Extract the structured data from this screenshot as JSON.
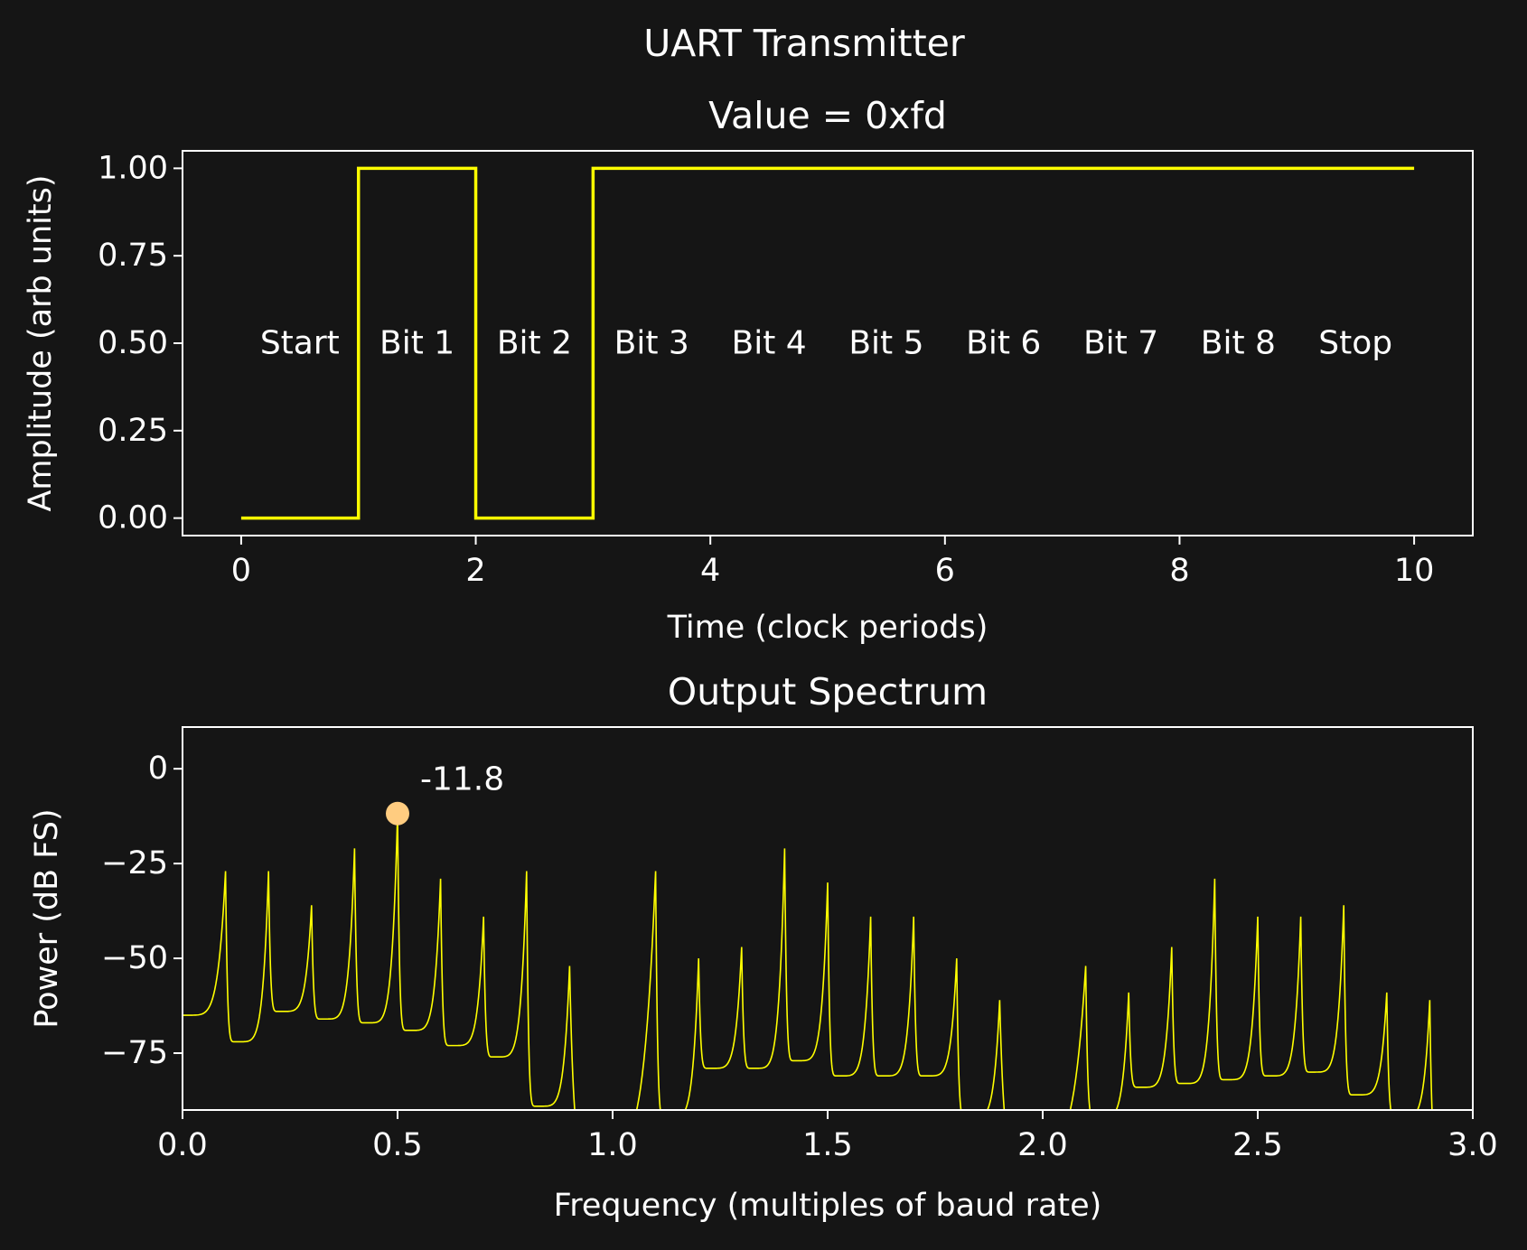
{
  "figure": {
    "title": "UART Transmitter",
    "background": "#151515",
    "foreground": "#ffffff"
  },
  "chart_data": [
    {
      "type": "line",
      "title": "Value = 0xfd",
      "xlabel": "Time (clock periods)",
      "ylabel": "Amplitude (arb units)",
      "xlim": [
        -0.5,
        10.5
      ],
      "ylim": [
        -0.05,
        1.05
      ],
      "xticks": [
        "0",
        "2",
        "4",
        "6",
        "8",
        "10"
      ],
      "yticks": [
        "0.00",
        "0.25",
        "0.50",
        "0.75",
        "1.00"
      ],
      "grid": false,
      "series": [
        {
          "color": "#ffff00",
          "step": "post",
          "x": [
            0,
            1,
            2,
            3,
            4,
            5,
            6,
            7,
            8,
            9,
            10
          ],
          "y": [
            0,
            1,
            0,
            1,
            1,
            1,
            1,
            1,
            1,
            1,
            1
          ]
        }
      ],
      "annotations": [
        {
          "text": "Start",
          "x": 0.5,
          "y": 0.5
        },
        {
          "text": "Bit 1",
          "x": 1.5,
          "y": 0.5
        },
        {
          "text": "Bit 2",
          "x": 2.5,
          "y": 0.5
        },
        {
          "text": "Bit 3",
          "x": 3.5,
          "y": 0.5
        },
        {
          "text": "Bit 4",
          "x": 4.5,
          "y": 0.5
        },
        {
          "text": "Bit 5",
          "x": 5.5,
          "y": 0.5
        },
        {
          "text": "Bit 6",
          "x": 6.5,
          "y": 0.5
        },
        {
          "text": "Bit 7",
          "x": 7.5,
          "y": 0.5
        },
        {
          "text": "Bit 8",
          "x": 8.5,
          "y": 0.5
        },
        {
          "text": "Stop",
          "x": 9.5,
          "y": 0.5
        }
      ]
    },
    {
      "type": "line",
      "title": "Output Spectrum",
      "xlabel": "Frequency (multiples of baud rate)",
      "ylabel": "Power (dB FS)",
      "xlim": [
        0.0,
        3.0
      ],
      "ylim": [
        -90,
        11
      ],
      "xticks": [
        "0.0",
        "0.5",
        "1.0",
        "1.5",
        "2.0",
        "2.5",
        "3.0"
      ],
      "yticks": [
        "0",
        "−25",
        "−50",
        "−75"
      ],
      "grid": false,
      "series": [
        {
          "color": "#ffff00",
          "floor_start": -65,
          "peaks": [
            {
              "f": 0.1,
              "p": -27,
              "trough": -72
            },
            {
              "f": 0.2,
              "p": -27,
              "trough": -64
            },
            {
              "f": 0.3,
              "p": -36,
              "trough": -66
            },
            {
              "f": 0.4,
              "p": -21,
              "trough": -67
            },
            {
              "f": 0.5,
              "p": -11.8,
              "trough": -69
            },
            {
              "f": 0.6,
              "p": -29,
              "trough": -73
            },
            {
              "f": 0.7,
              "p": -39,
              "trough": -76
            },
            {
              "f": 0.8,
              "p": -27,
              "trough": -89
            },
            {
              "f": 0.9,
              "p": -52,
              "trough": -100
            },
            {
              "f": 1.1,
              "p": -27,
              "trough": -92
            },
            {
              "f": 1.2,
              "p": -50,
              "trough": -79
            },
            {
              "f": 1.3,
              "p": -47,
              "trough": -79
            },
            {
              "f": 1.4,
              "p": -21,
              "trough": -77
            },
            {
              "f": 1.5,
              "p": -30,
              "trough": -81
            },
            {
              "f": 1.6,
              "p": -39,
              "trough": -81
            },
            {
              "f": 1.7,
              "p": -39,
              "trough": -81
            },
            {
              "f": 1.8,
              "p": -50,
              "trough": -92
            },
            {
              "f": 1.9,
              "p": -61,
              "trough": -100
            },
            {
              "f": 2.1,
              "p": -52,
              "trough": -92
            },
            {
              "f": 2.2,
              "p": -59,
              "trough": -84
            },
            {
              "f": 2.3,
              "p": -47,
              "trough": -83
            },
            {
              "f": 2.4,
              "p": -29,
              "trough": -82
            },
            {
              "f": 2.5,
              "p": -39,
              "trough": -81
            },
            {
              "f": 2.6,
              "p": -39,
              "trough": -80
            },
            {
              "f": 2.7,
              "p": -36,
              "trough": -86
            },
            {
              "f": 2.8,
              "p": -59,
              "trough": -92
            },
            {
              "f": 2.9,
              "p": -61,
              "trough": -100
            }
          ],
          "end_level": -96
        }
      ],
      "marker": {
        "x": 0.5,
        "y": -11.8,
        "color": "#ffcc80",
        "label": "-11.8"
      }
    }
  ]
}
